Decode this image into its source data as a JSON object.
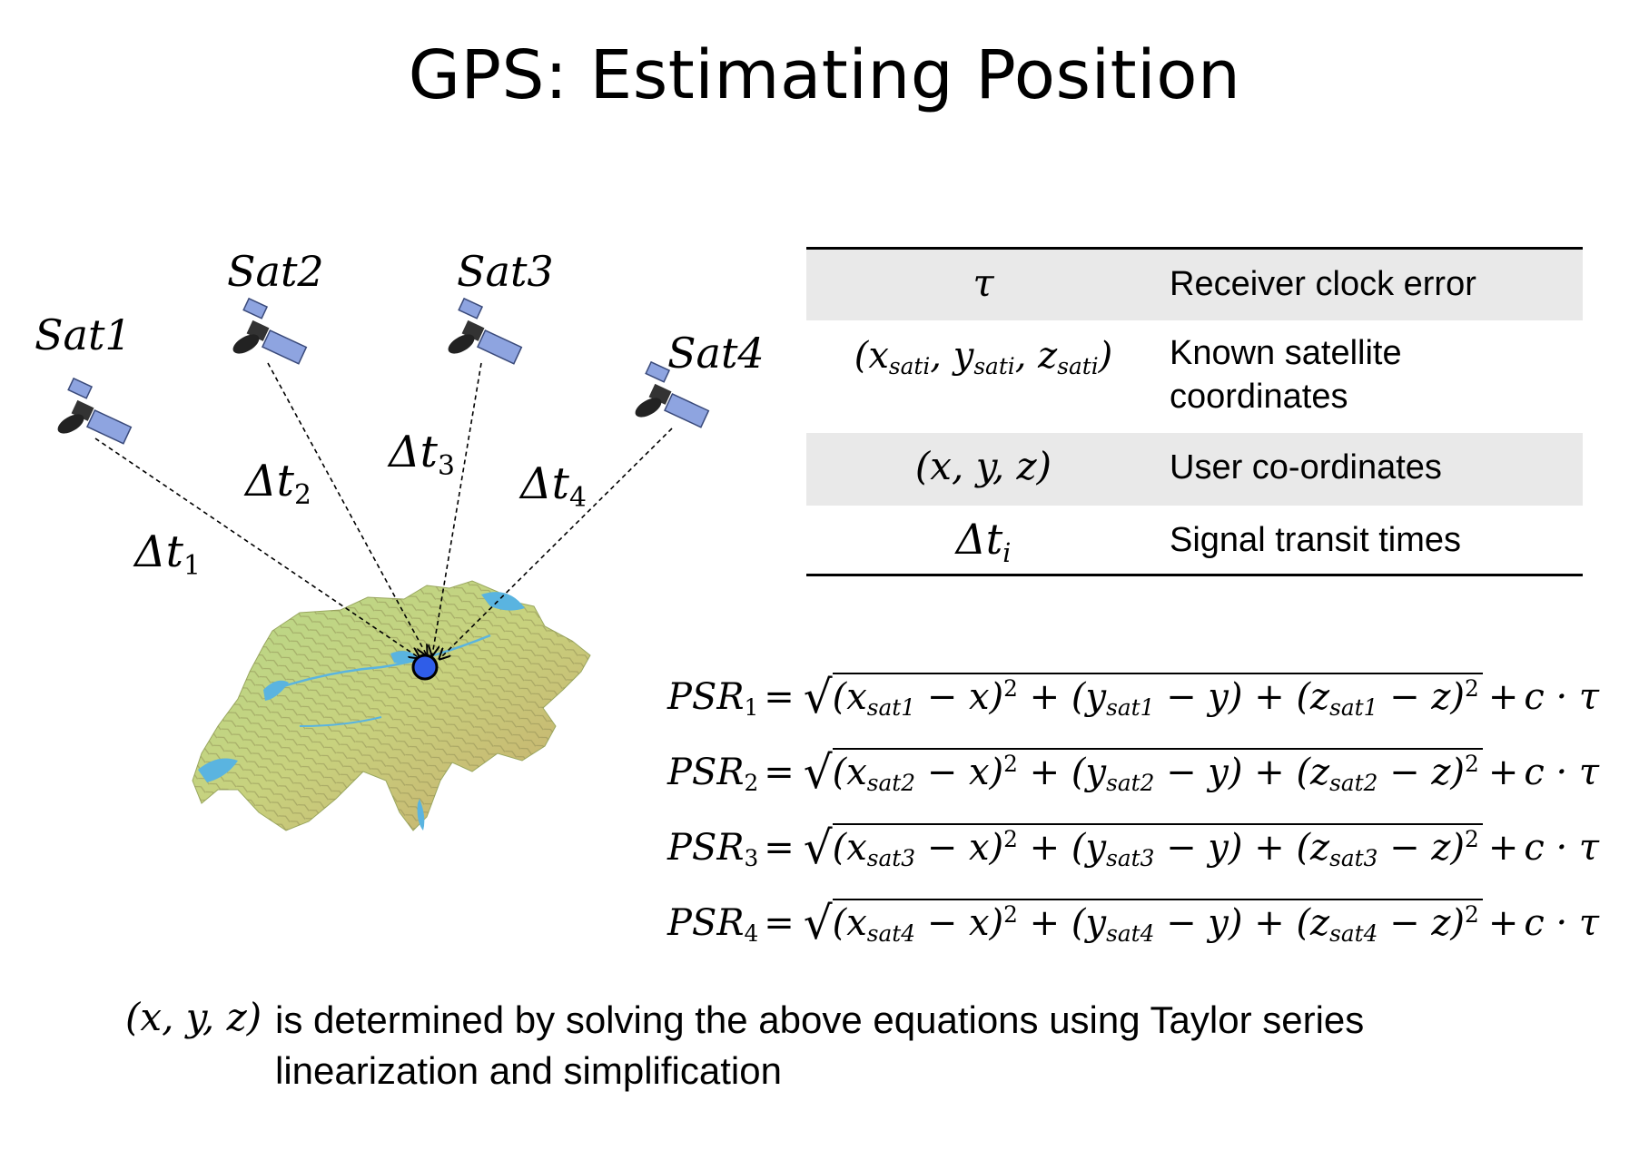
{
  "title": "GPS: Estimating Position",
  "satellites": [
    {
      "label": "Sat1"
    },
    {
      "label": "Sat2"
    },
    {
      "label": "Sat3"
    },
    {
      "label": "Sat4"
    }
  ],
  "transit_labels": [
    {
      "sym": "Δt",
      "sub": "1"
    },
    {
      "sym": "Δt",
      "sub": "2"
    },
    {
      "sym": "Δt",
      "sub": "3"
    },
    {
      "sym": "Δt",
      "sub": "4"
    }
  ],
  "table": {
    "rows": [
      {
        "symbol": "τ",
        "desc_line1": "Receiver clock error",
        "desc_line2": ""
      },
      {
        "symbol": "(x_sati, y_sati, z_sati)",
        "desc_line1": "Known satellite",
        "desc_line2": "coordinates"
      },
      {
        "symbol": "(x, y, z)",
        "desc_line1": "User co-ordinates",
        "desc_line2": ""
      },
      {
        "symbol": "Δt_i",
        "desc_line1": "Signal transit times",
        "desc_line2": ""
      }
    ]
  },
  "equations": [
    {
      "lhs": "PSR",
      "sub": "1",
      "sat": "sat1"
    },
    {
      "lhs": "PSR",
      "sub": "2",
      "sat": "sat2"
    },
    {
      "lhs": "PSR",
      "sub": "3",
      "sat": "sat3"
    },
    {
      "lhs": "PSR",
      "sub": "4",
      "sat": "sat4"
    }
  ],
  "footer": {
    "math": "(x, y, z)",
    "line1": "is determined by solving the above equations using Taylor series",
    "line2": "linearization and simplification"
  },
  "colors": {
    "user_marker": "#2f5de8",
    "lake": "#5ab4e0",
    "land_low": "#b9d98a",
    "land_high": "#c9a86a",
    "table_shade": "#e9e9e9",
    "panel": "#8ea4e0"
  }
}
